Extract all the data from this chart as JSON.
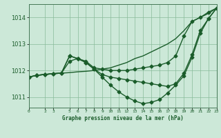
{
  "background_color": "#cce8d8",
  "grid_color": "#88bb99",
  "line_color": "#1a5c2a",
  "xlabel": "Graphe pression niveau de la mer (hPa)",
  "ylim": [
    1010.6,
    1014.5
  ],
  "xlim": [
    0,
    23
  ],
  "yticks": [
    1011,
    1012,
    1013,
    1014
  ],
  "xtick_labels": [
    "0",
    "2",
    "3",
    "5",
    "6",
    "7",
    "8",
    "9",
    "10",
    "11",
    "12",
    "13",
    "14",
    "15",
    "16",
    "17",
    "18",
    "19",
    "20",
    "21",
    "22",
    "23"
  ],
  "xtick_pos": [
    0,
    2,
    3,
    5,
    6,
    7,
    8,
    9,
    10,
    11,
    12,
    13,
    14,
    15,
    16,
    17,
    18,
    19,
    20,
    21,
    22,
    23
  ],
  "series": [
    {
      "y": [
        1011.75,
        1011.82,
        1011.85,
        1011.88,
        1011.9,
        1011.92,
        1011.95,
        1011.97,
        1012.0,
        1012.05,
        1012.1,
        1012.2,
        1012.3,
        1012.45,
        1012.55,
        1012.7,
        1012.85,
        1013.0,
        1013.2,
        1013.5,
        1013.85,
        1014.0,
        1014.15,
        1014.35
      ],
      "marker": false
    },
    {
      "y": [
        1011.75,
        1011.82,
        1011.85,
        1011.88,
        1011.9,
        1012.35,
        1012.45,
        1012.35,
        1012.1,
        1012.05,
        1012.0,
        1012.0,
        1012.0,
        1012.05,
        1012.1,
        1012.15,
        1012.2,
        1012.3,
        1012.55,
        1013.3,
        1013.85,
        1014.0,
        1014.2,
        1014.35
      ],
      "marker": true
    },
    {
      "y": [
        1011.75,
        1011.82,
        1011.85,
        1011.88,
        1011.9,
        1012.55,
        1012.45,
        1012.3,
        1012.05,
        1011.75,
        1011.45,
        1011.2,
        1011.0,
        1010.85,
        1010.75,
        1010.8,
        1010.9,
        1011.15,
        1011.45,
        1011.8,
        1012.5,
        1013.4,
        1013.95,
        1014.35
      ],
      "marker": true
    },
    {
      "y": [
        1011.75,
        1011.82,
        1011.85,
        1011.88,
        1011.9,
        1012.55,
        1012.45,
        1012.3,
        1012.05,
        1011.85,
        1011.75,
        1011.7,
        1011.65,
        1011.6,
        1011.55,
        1011.5,
        1011.45,
        1011.4,
        1011.5,
        1011.9,
        1012.6,
        1013.5,
        1013.95,
        1014.35
      ],
      "marker": true
    }
  ],
  "marker": "D",
  "markersize": 2.5,
  "linewidth": 1.0
}
